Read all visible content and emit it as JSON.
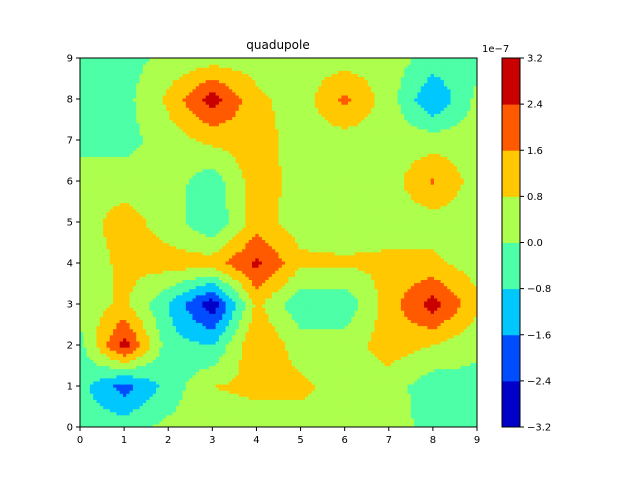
{
  "chart_data": {
    "type": "heatmap",
    "subtype": "filled-contour",
    "title": "quadupole",
    "xlim": [
      0,
      9
    ],
    "ylim": [
      0,
      9
    ],
    "x_ticks": [
      "0",
      "1",
      "2",
      "3",
      "4",
      "5",
      "6",
      "7",
      "8",
      "9"
    ],
    "y_ticks": [
      "0",
      "1",
      "2",
      "3",
      "4",
      "5",
      "6",
      "7",
      "8",
      "9"
    ],
    "grid": false,
    "colormap": "jet",
    "colorbar": {
      "placement": "right",
      "offset_label": "1e−7",
      "range": [
        -3.2,
        3.2
      ],
      "levels": [
        -3.2,
        -2.4,
        -1.6,
        -0.8,
        0.0,
        0.8,
        1.6,
        2.4,
        3.2
      ],
      "tick_labels": [
        "−3.2",
        "−2.4",
        "−1.6",
        "−0.8",
        "0.0",
        "0.8",
        "1.6",
        "2.4",
        "3.2"
      ],
      "band_colors": [
        "#0000c8",
        "#004cff",
        "#00c8ff",
        "#4dffa6",
        "#adff4d",
        "#ffc800",
        "#ff5a00",
        "#c80000"
      ]
    },
    "grid_x": [
      0,
      1,
      2,
      3,
      4,
      5,
      6,
      7,
      8,
      9
    ],
    "grid_y": [
      0,
      1,
      2,
      3,
      4,
      5,
      6,
      7,
      8,
      9
    ],
    "z": [
      [
        -0.3,
        -0.3,
        0.2,
        0.3,
        0.4,
        0.4,
        0.4,
        0.4,
        -0.3,
        -0.3
      ],
      [
        -0.5,
        -2.0,
        -0.5,
        0.8,
        1.0,
        1.0,
        0.4,
        0.4,
        -0.5,
        -0.3
      ],
      [
        -0.3,
        2.8,
        -0.5,
        -0.8,
        1.6,
        0.4,
        0.4,
        1.2,
        0.8,
        0.2
      ],
      [
        0.3,
        1.0,
        -0.8,
        -3.0,
        1.0,
        -0.6,
        -0.6,
        1.2,
        2.8,
        1.0
      ],
      [
        0.3,
        1.0,
        1.2,
        1.2,
        2.6,
        1.0,
        0.9,
        1.0,
        1.0,
        0.4
      ],
      [
        0.4,
        1.2,
        0.4,
        -0.7,
        1.2,
        0.4,
        0.4,
        0.4,
        0.4,
        0.4
      ],
      [
        0.4,
        0.4,
        0.4,
        -0.5,
        1.3,
        0.4,
        0.4,
        0.4,
        1.7,
        0.4
      ],
      [
        -0.3,
        -0.3,
        0.4,
        1.0,
        1.2,
        0.4,
        0.4,
        0.4,
        0.4,
        0.4
      ],
      [
        -0.3,
        -0.3,
        1.0,
        2.8,
        1.0,
        0.4,
        1.8,
        0.4,
        -1.6,
        0.2
      ],
      [
        -0.3,
        -0.3,
        0.2,
        0.4,
        0.4,
        0.4,
        0.4,
        0.4,
        -0.3,
        -0.3
      ]
    ]
  }
}
